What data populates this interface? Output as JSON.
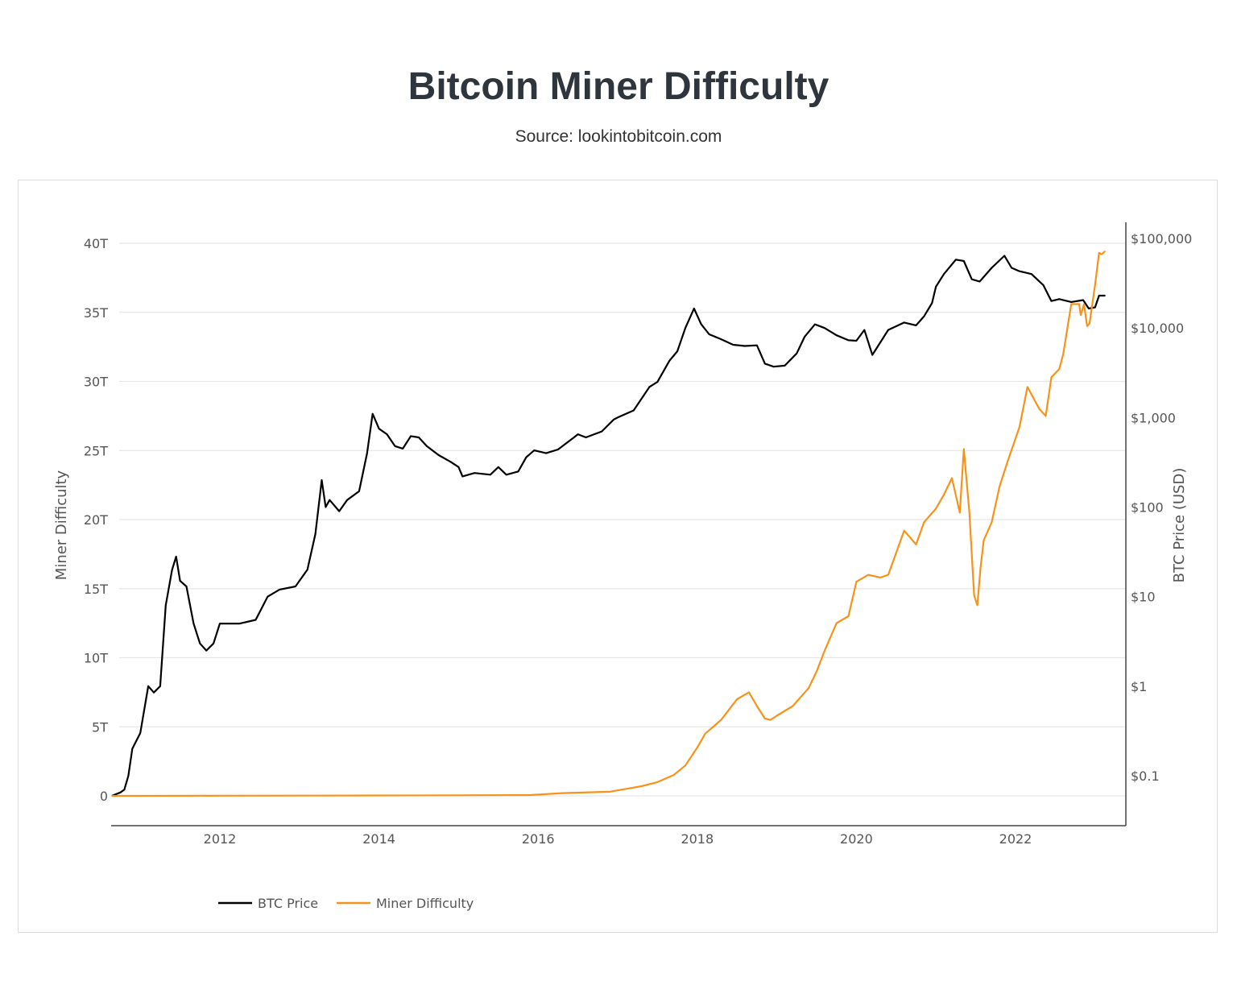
{
  "header": {
    "title": "Bitcoin Miner Difficulty",
    "subtitle": "Source: lookintobitcoin.com"
  },
  "chart_data": {
    "type": "line",
    "title": "Bitcoin Miner Difficulty",
    "subtitle": "Source: lookintobitcoin.com",
    "xlabel": "",
    "ylabel_left": "Miner Difficulty",
    "ylabel_right": "BTC Price (USD)",
    "x_ticks": [
      "2012",
      "2014",
      "2016",
      "2018",
      "2020",
      "2022"
    ],
    "y_left_ticks": [
      "0",
      "5T",
      "10T",
      "15T",
      "20T",
      "25T",
      "30T",
      "35T",
      "40T"
    ],
    "y_right_ticks": [
      "$0.1",
      "$1",
      "$10",
      "$100",
      "$1,000",
      "$10,000",
      "$100,000"
    ],
    "xlim": [
      2010.62,
      2023.15
    ],
    "ylim_left_T": [
      -2.2,
      40
    ],
    "y_right_scale": "log",
    "ylim_right_log10": [
      -1,
      5
    ],
    "grid": true,
    "legend_position": "bottom-left",
    "series": [
      {
        "name": "BTC Price",
        "axis": "right",
        "color": "#000000",
        "x": [
          2010.65,
          2010.75,
          2010.8,
          2010.85,
          2010.9,
          2011.0,
          2011.1,
          2011.17,
          2011.25,
          2011.32,
          2011.4,
          2011.45,
          2011.5,
          2011.58,
          2011.67,
          2011.75,
          2011.83,
          2011.92,
          2012.0,
          2012.1,
          2012.25,
          2012.45,
          2012.6,
          2012.75,
          2012.95,
          2013.1,
          2013.2,
          2013.28,
          2013.33,
          2013.38,
          2013.5,
          2013.6,
          2013.75,
          2013.85,
          2013.92,
          2014.0,
          2014.1,
          2014.2,
          2014.3,
          2014.4,
          2014.5,
          2014.6,
          2014.75,
          2014.9,
          2015.0,
          2015.05,
          2015.2,
          2015.4,
          2015.5,
          2015.6,
          2015.75,
          2015.85,
          2015.95,
          2016.1,
          2016.25,
          2016.45,
          2016.5,
          2016.6,
          2016.8,
          2016.95,
          2017.0,
          2017.2,
          2017.4,
          2017.5,
          2017.65,
          2017.75,
          2017.85,
          2017.96,
          2018.05,
          2018.15,
          2018.3,
          2018.45,
          2018.6,
          2018.75,
          2018.85,
          2018.96,
          2019.1,
          2019.25,
          2019.35,
          2019.48,
          2019.6,
          2019.75,
          2019.9,
          2020.0,
          2020.1,
          2020.2,
          2020.4,
          2020.6,
          2020.75,
          2020.85,
          2020.95,
          2021.0,
          2021.1,
          2021.25,
          2021.35,
          2021.45,
          2021.55,
          2021.7,
          2021.86,
          2021.95,
          2022.05,
          2022.2,
          2022.35,
          2022.45,
          2022.55,
          2022.7,
          2022.85,
          2022.92,
          2023.0,
          2023.05,
          2023.12
        ],
        "y": [
          0.06,
          0.065,
          0.07,
          0.1,
          0.2,
          0.3,
          1.0,
          0.85,
          1.0,
          8.0,
          20.0,
          28.0,
          15.0,
          13.0,
          5.0,
          3.0,
          2.5,
          3.0,
          5.0,
          5.0,
          5.0,
          5.5,
          10.0,
          12.0,
          13.0,
          20.0,
          50.0,
          200.0,
          100.0,
          120.0,
          90.0,
          120.0,
          150.0,
          400.0,
          1100.0,
          750.0,
          650.0,
          480.0,
          450.0,
          620.0,
          600.0,
          480.0,
          380.0,
          320.0,
          280.0,
          220.0,
          240.0,
          230.0,
          280.0,
          230.0,
          250.0,
          360.0,
          430.0,
          400.0,
          440.0,
          600.0,
          650.0,
          600.0,
          700.0,
          950.0,
          1000.0,
          1200.0,
          2200.0,
          2500.0,
          4300.0,
          5500.0,
          10000.0,
          16500.0,
          11000.0,
          8500.0,
          7500.0,
          6500.0,
          6300.0,
          6400.0,
          4000.0,
          3700.0,
          3800.0,
          5200.0,
          8000.0,
          11000.0,
          10000.0,
          8300.0,
          7300.0,
          7200.0,
          9500.0,
          5000.0,
          9500.0,
          11500.0,
          10700.0,
          13500.0,
          19000.0,
          29000.0,
          40000.0,
          58000.0,
          56000.0,
          35000.0,
          33000.0,
          47000.0,
          64000.0,
          47000.0,
          43000.0,
          40000.0,
          30000.0,
          20000.0,
          21000.0,
          19500.0,
          20500.0,
          16500.0,
          17000.0,
          23000.0,
          23000.0
        ]
      },
      {
        "name": "Miner Difficulty",
        "axis": "left",
        "color": "#f7931a",
        "x": [
          2010.65,
          2011.0,
          2012.0,
          2013.0,
          2014.0,
          2015.0,
          2015.9,
          2016.3,
          2016.9,
          2017.1,
          2017.3,
          2017.5,
          2017.7,
          2017.85,
          2018.0,
          2018.1,
          2018.3,
          2018.5,
          2018.65,
          2018.75,
          2018.85,
          2018.92,
          2019.0,
          2019.2,
          2019.4,
          2019.5,
          2019.6,
          2019.75,
          2019.9,
          2020.0,
          2020.15,
          2020.3,
          2020.4,
          2020.6,
          2020.75,
          2020.85,
          2021.0,
          2021.1,
          2021.2,
          2021.3,
          2021.35,
          2021.42,
          2021.48,
          2021.52,
          2021.56,
          2021.6,
          2021.7,
          2021.8,
          2021.9,
          2022.05,
          2022.15,
          2022.3,
          2022.38,
          2022.45,
          2022.55,
          2022.6,
          2022.7,
          2022.8,
          2022.82,
          2022.86,
          2022.9,
          2022.93,
          2023.0,
          2023.05,
          2023.08,
          2023.12
        ],
        "y": [
          0.0,
          0.0,
          0.01,
          0.02,
          0.03,
          0.04,
          0.06,
          0.2,
          0.3,
          0.5,
          0.7,
          1.0,
          1.5,
          2.2,
          3.5,
          4.5,
          5.5,
          7.0,
          7.5,
          6.5,
          5.6,
          5.5,
          5.8,
          6.5,
          7.8,
          9.0,
          10.5,
          12.5,
          13.0,
          15.5,
          16.0,
          15.8,
          16.0,
          19.2,
          18.2,
          19.8,
          20.8,
          21.8,
          23.0,
          20.5,
          25.1,
          20.5,
          14.5,
          13.8,
          16.5,
          18.5,
          19.8,
          22.4,
          24.2,
          26.7,
          29.6,
          28.0,
          27.5,
          30.3,
          30.9,
          32.0,
          35.6,
          35.6,
          34.8,
          35.6,
          34.0,
          34.2,
          37.0,
          39.3,
          39.2,
          39.4
        ]
      }
    ]
  },
  "legend": {
    "items": [
      {
        "label": "BTC Price",
        "color": "#000000"
      },
      {
        "label": "Miner Difficulty",
        "color": "#f7931a"
      }
    ]
  }
}
